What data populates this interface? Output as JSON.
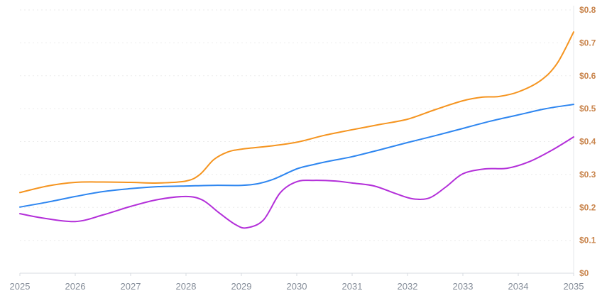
{
  "chart_data": {
    "type": "line",
    "title": "",
    "xlabel": "",
    "ylabel": "",
    "xlim": [
      2025,
      2035
    ],
    "ylim": [
      0,
      0.8
    ],
    "x_tick_labels": [
      "2025",
      "2026",
      "2027",
      "2028",
      "2029",
      "2030",
      "2031",
      "2032",
      "2033",
      "2034",
      "2035"
    ],
    "y_ticks": [
      {
        "value": 0.8,
        "label": "$0.8"
      },
      {
        "value": 0.7,
        "label": "$0.7"
      },
      {
        "value": 0.6,
        "label": "$0.6"
      },
      {
        "value": 0.5,
        "label": "$0.5"
      },
      {
        "value": 0.4,
        "label": "$0.4"
      },
      {
        "value": 0.3,
        "label": "$0.3"
      },
      {
        "value": 0.2,
        "label": "$0.2"
      },
      {
        "value": 0.1,
        "label": "$0.1"
      },
      {
        "value": 0,
        "label": "$0"
      }
    ],
    "grid": {
      "horizontal": true,
      "style": "dashed",
      "color": "#ebebeb"
    },
    "legend": "none",
    "axis_colors": {
      "x_labels": "#858d99",
      "y_labels": "#c9854d",
      "axis_line": "#d7dbe0"
    },
    "series": [
      {
        "name": "orange",
        "color": "#f5941f",
        "points": [
          [
            2025,
            0.245
          ],
          [
            2025.5,
            0.265
          ],
          [
            2026,
            0.276
          ],
          [
            2026.5,
            0.277
          ],
          [
            2027,
            0.276
          ],
          [
            2027.5,
            0.274
          ],
          [
            2028,
            0.28
          ],
          [
            2028.25,
            0.3
          ],
          [
            2028.5,
            0.345
          ],
          [
            2028.75,
            0.368
          ],
          [
            2029,
            0.377
          ],
          [
            2029.5,
            0.386
          ],
          [
            2030,
            0.398
          ],
          [
            2030.5,
            0.419
          ],
          [
            2031,
            0.436
          ],
          [
            2031.5,
            0.452
          ],
          [
            2032,
            0.468
          ],
          [
            2032.5,
            0.497
          ],
          [
            2033,
            0.524
          ],
          [
            2033.35,
            0.535
          ],
          [
            2033.65,
            0.537
          ],
          [
            2034,
            0.551
          ],
          [
            2034.4,
            0.585
          ],
          [
            2034.7,
            0.637
          ],
          [
            2035,
            0.733
          ]
        ]
      },
      {
        "name": "blue",
        "color": "#2e86f0",
        "points": [
          [
            2025,
            0.201
          ],
          [
            2025.5,
            0.216
          ],
          [
            2026,
            0.233
          ],
          [
            2026.5,
            0.248
          ],
          [
            2027,
            0.257
          ],
          [
            2027.5,
            0.263
          ],
          [
            2028,
            0.265
          ],
          [
            2028.5,
            0.267
          ],
          [
            2029,
            0.267
          ],
          [
            2029.3,
            0.272
          ],
          [
            2029.6,
            0.287
          ],
          [
            2030,
            0.317
          ],
          [
            2030.3,
            0.33
          ],
          [
            2030.6,
            0.341
          ],
          [
            2031,
            0.354
          ],
          [
            2031.5,
            0.375
          ],
          [
            2032,
            0.397
          ],
          [
            2032.5,
            0.418
          ],
          [
            2033,
            0.44
          ],
          [
            2033.5,
            0.462
          ],
          [
            2034,
            0.481
          ],
          [
            2034.5,
            0.5
          ],
          [
            2035,
            0.513
          ]
        ]
      },
      {
        "name": "purple",
        "color": "#b32fd9",
        "points": [
          [
            2025,
            0.181
          ],
          [
            2025.4,
            0.168
          ],
          [
            2026,
            0.157
          ],
          [
            2026.5,
            0.177
          ],
          [
            2027,
            0.203
          ],
          [
            2027.5,
            0.224
          ],
          [
            2028,
            0.233
          ],
          [
            2028.3,
            0.222
          ],
          [
            2028.6,
            0.183
          ],
          [
            2028.9,
            0.147
          ],
          [
            2029.1,
            0.138
          ],
          [
            2029.4,
            0.162
          ],
          [
            2029.7,
            0.244
          ],
          [
            2030,
            0.278
          ],
          [
            2030.3,
            0.282
          ],
          [
            2030.7,
            0.28
          ],
          [
            2031,
            0.274
          ],
          [
            2031.4,
            0.265
          ],
          [
            2031.8,
            0.241
          ],
          [
            2032.1,
            0.226
          ],
          [
            2032.4,
            0.229
          ],
          [
            2032.7,
            0.263
          ],
          [
            2033,
            0.302
          ],
          [
            2033.4,
            0.317
          ],
          [
            2033.8,
            0.319
          ],
          [
            2034.2,
            0.339
          ],
          [
            2034.6,
            0.373
          ],
          [
            2035,
            0.414
          ]
        ]
      }
    ]
  }
}
